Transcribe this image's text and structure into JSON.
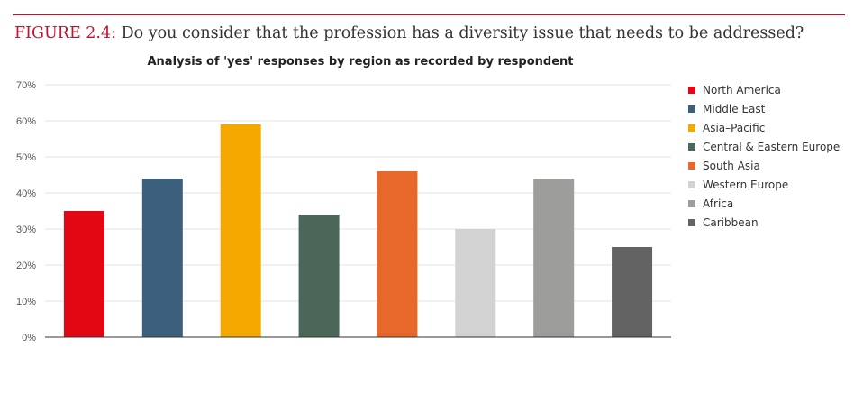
{
  "figure": {
    "label": "FIGURE 2.4:",
    "question": " Do you consider that the profession has a diversity issue that needs to be addressed?"
  },
  "chart_data": {
    "type": "bar",
    "title": "Analysis of 'yes' responses by region as recorded by respondent",
    "categories": [
      "North America",
      "Middle East",
      "Asia–Pacific",
      "Central & Eastern Europe",
      "South Asia",
      "Western Europe",
      "Africa",
      "Caribbean"
    ],
    "values": [
      35,
      44,
      59,
      34,
      46,
      30,
      44,
      25
    ],
    "colors": [
      "#e30613",
      "#3c5f7e",
      "#f5a800",
      "#4a6759",
      "#e8672a",
      "#d2d2d2",
      "#9d9d9b",
      "#636363"
    ],
    "ylim": [
      0,
      70
    ],
    "yticks": [
      0,
      10,
      20,
      30,
      40,
      50,
      60,
      70
    ],
    "ytick_labels": [
      "0%",
      "10%",
      "20%",
      "30%",
      "40%",
      "50%",
      "60%",
      "70%"
    ],
    "grid": true,
    "legend": "right",
    "xlabel": "",
    "ylabel": ""
  }
}
